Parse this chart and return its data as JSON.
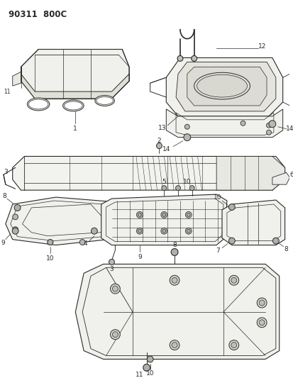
{
  "title": "90311  800C",
  "bg": "#ffffff",
  "fg": "#2a2a2a",
  "fig_w": 4.14,
  "fig_h": 5.33,
  "dpi": 100
}
